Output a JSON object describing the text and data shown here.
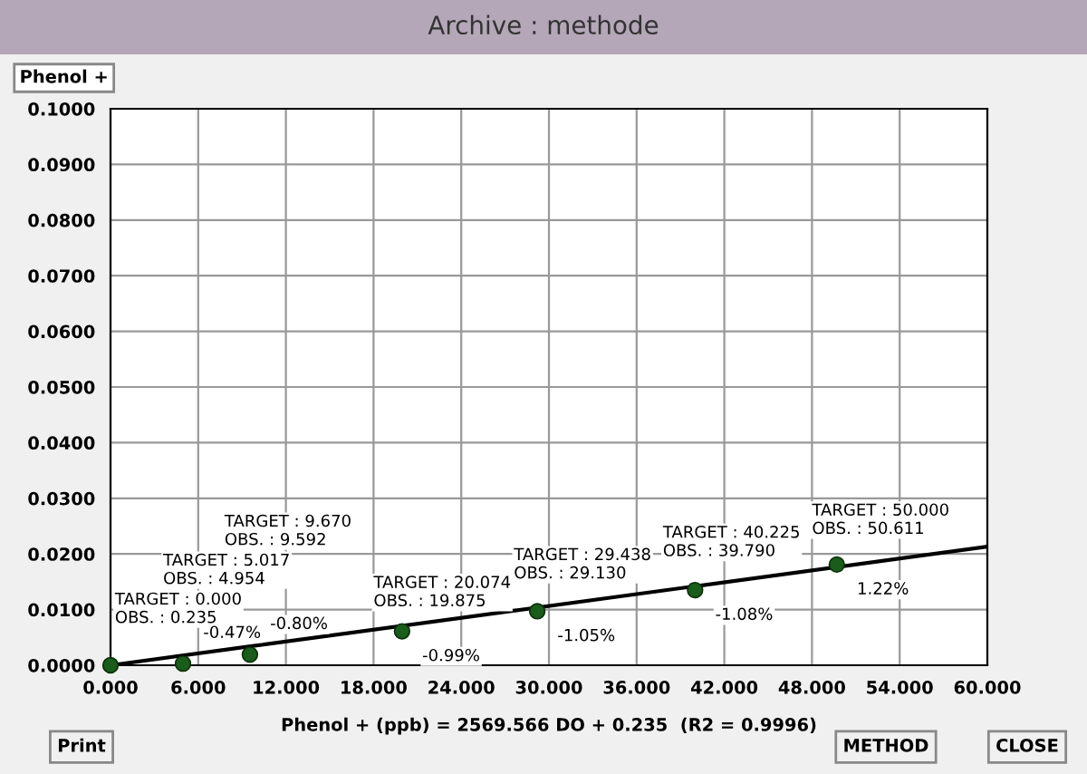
{
  "chart_data": {
    "type": "scatter",
    "title": "Archive : methode",
    "subtitle": "Phenol +",
    "xlabel": "Phenol + (ppb) = 2569.566 DO + 0.235  (R2 = 0.9996)",
    "x": [
      0,
      4.96,
      9.54,
      19.95,
      29.2,
      40.0,
      49.7
    ],
    "series": [
      {
        "marker": "circle",
        "color": "#1a5c1a",
        "values": [
          0,
          0.0003,
          0.0019,
          0.0061,
          0.0097,
          0.0135,
          0.0181
        ]
      },
      {
        "type": "line",
        "color": "#000000",
        "x": [
          0,
          60
        ],
        "values": [
          0,
          0.0213
        ]
      }
    ],
    "xlim": [
      0,
      60
    ],
    "ylim": [
      0,
      0.1
    ],
    "xticks": [
      {
        "value": 0,
        "label": "0.000"
      },
      {
        "value": 6,
        "label": "6.000"
      },
      {
        "value": 12,
        "label": "12.000"
      },
      {
        "value": 18,
        "label": "18.000"
      },
      {
        "value": 24,
        "label": "24.000"
      },
      {
        "value": 30,
        "label": "30.000"
      },
      {
        "value": 36,
        "label": "36.000"
      },
      {
        "value": 42,
        "label": "42.000"
      },
      {
        "value": 48,
        "label": "48.000"
      },
      {
        "value": 54,
        "label": "54.000"
      },
      {
        "value": 60,
        "label": "60.000"
      }
    ],
    "yticks": [
      {
        "value": 0,
        "label": "0.0000"
      },
      {
        "value": 0.01,
        "label": "0.0100"
      },
      {
        "value": 0.02,
        "label": "0.0200"
      },
      {
        "value": 0.03,
        "label": "0.0300"
      },
      {
        "value": 0.04,
        "label": "0.0400"
      },
      {
        "value": 0.05,
        "label": "0.0500"
      },
      {
        "value": 0.06,
        "label": "0.0600"
      },
      {
        "value": 0.07,
        "label": "0.0700"
      },
      {
        "value": 0.08,
        "label": "0.0800"
      },
      {
        "value": 0.09,
        "label": "0.0900"
      },
      {
        "value": 0.1,
        "label": "0.1000"
      }
    ],
    "grid": true,
    "annotations": [
      "TARGET : 0.000\nOBS. : 0.235",
      "TARGET : 5.017\nOBS. : 4.954",
      "TARGET : 9.670\nOBS. : 9.592",
      "TARGET : 20.074\nOBS. : 19.875",
      "TARGET : 29.438\nOBS. : 29.130",
      "TARGET : 40.225\nOBS. : 39.790",
      "TARGET : 50.000\nOBS. : 50.611",
      {
        "text": "-0.47%",
        "x": 4.96,
        "y": 0.0003
      },
      {
        "text": "-0.80%",
        "x": 9.54,
        "y": 0.0019
      },
      {
        "text": "-0.99%",
        "x": 19.95,
        "y": 0.0061
      },
      {
        "text": "-1.05%",
        "x": 29.2,
        "y": 0.0097
      },
      {
        "text": "-1.08%",
        "x": 40.0,
        "y": 0.0135
      },
      {
        "text": "1.22%",
        "x": 49.7,
        "y": 0.0181
      },
      "Print",
      "METHOD",
      "CLOSE"
    ]
  }
}
